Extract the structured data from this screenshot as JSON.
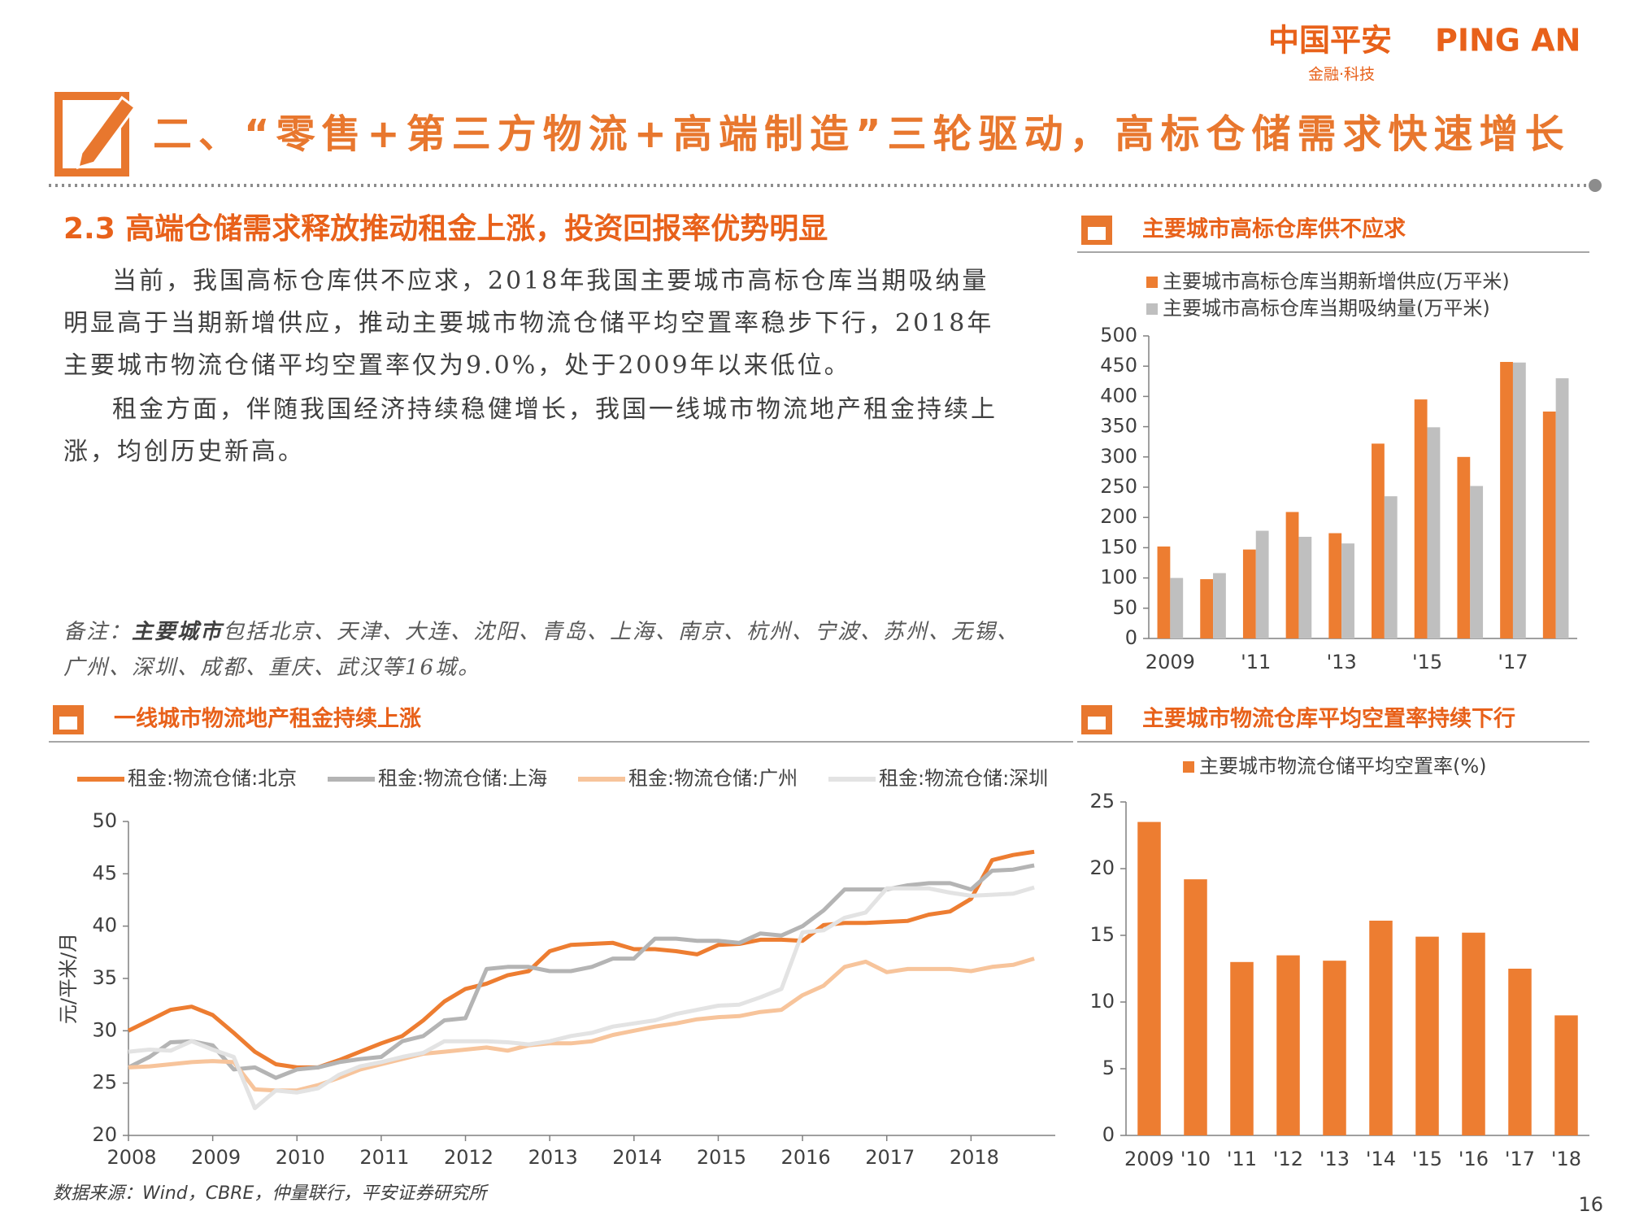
{
  "header": {
    "logo": "中国平安",
    "logo_latin": "PING AN",
    "logo_tagline": "金融·科技",
    "title": "二、“零售+第三方物流+高端制造”三轮驱动，高标仓储需求快速增长"
  },
  "section": {
    "title": "2.3 高端仓储需求释放推动租金上涨，投资回报率优势明显",
    "paragraphs": [
      "当前，我国高标仓库供不应求，2018年我国主要城市高标仓库当期吸纳量明显高于当期新增供应，推动主要城市物流仓储平均空置率稳步下行，2018年主要城市物流仓储平均空置率仅为9.0%，处于2009年以来低位。",
      "租金方面，伴随我国经济持续稳健增长，我国一线城市物流地产租金持续上涨，均创历史新高。"
    ],
    "note": {
      "label": "备注：",
      "emphasis": "主要城市",
      "text": "包括北京、天津、大连、沈阳、青岛、上海、南京、杭州、宁波、苏州、无锡、广州、深圳、成都、重庆、武汉等16城。"
    }
  },
  "footer": {
    "source": "数据来源：Wind，CBRE，仲量联行，平安证券研究所",
    "page": "16"
  },
  "chart_data": [
    {
      "type": "bar",
      "title": "主要城市高标仓库供不应求",
      "categories": [
        "2009",
        null,
        "'11",
        null,
        "'13",
        null,
        "'15",
        null,
        "'17",
        null
      ],
      "series": [
        {
          "name": "主要城市高标仓库当期新增供应(万平米)",
          "color": "#ED7D31",
          "values": [
            152,
            98,
            147,
            209,
            174,
            322,
            395,
            300,
            457,
            375
          ]
        },
        {
          "name": "主要城市高标仓库当期吸纳量(万平米)",
          "color": "#BFBFBF",
          "values": [
            100,
            108,
            178,
            168,
            157,
            235,
            349,
            252,
            456,
            430
          ]
        }
      ],
      "ylim": [
        0,
        500
      ],
      "yticks": [
        0,
        50,
        100,
        150,
        200,
        250,
        300,
        350,
        400,
        450,
        500
      ]
    },
    {
      "type": "line",
      "title": "一线城市物流地产租金持续上涨",
      "y_label": "元/平米/月",
      "x": [
        2008,
        2008.25,
        2008.5,
        2008.75,
        2009,
        2009.25,
        2009.5,
        2009.75,
        2010,
        2010.25,
        2010.5,
        2010.75,
        2011,
        2011.25,
        2011.5,
        2011.75,
        2012,
        2012.25,
        2012.5,
        2012.75,
        2013,
        2013.25,
        2013.5,
        2013.75,
        2014,
        2014.25,
        2014.5,
        2014.75,
        2015,
        2015.25,
        2015.5,
        2015.75,
        2016,
        2016.25,
        2016.5,
        2016.75,
        2017,
        2017.25,
        2017.5,
        2017.75,
        2018,
        2018.25,
        2018.5,
        2018.75
      ],
      "series": [
        {
          "name": "租金:物流仓储:北京",
          "color": "#ED7D31",
          "values": [
            30,
            31,
            32,
            32.3,
            31.5,
            29.8,
            28,
            26.8,
            26.5,
            26.5,
            27.2,
            28,
            28.8,
            29.5,
            31,
            32.8,
            34,
            34.5,
            35.3,
            35.7,
            37.6,
            38.2,
            38.3,
            38.4,
            37.8,
            37.8,
            37.6,
            37.3,
            38.2,
            38.3,
            38.7,
            38.7,
            38.6,
            40.1,
            40.3,
            40.3,
            40.4,
            40.5,
            41.1,
            41.4,
            42.6,
            46.3,
            46.8,
            47.1
          ]
        },
        {
          "name": "租金:物流仓储:上海",
          "color": "#B4B4B4",
          "values": [
            26.5,
            27.5,
            28.9,
            29,
            28.6,
            26.3,
            26.5,
            25.5,
            26.3,
            26.5,
            27,
            27.3,
            27.5,
            29,
            29.5,
            31,
            31.2,
            35.9,
            36.1,
            36.1,
            35.7,
            35.7,
            36.1,
            36.9,
            36.9,
            38.8,
            38.8,
            38.6,
            38.6,
            38.4,
            39.3,
            39.1,
            40,
            41.5,
            43.5,
            43.5,
            43.5,
            43.9,
            44.1,
            44.1,
            43.5,
            45.3,
            45.4,
            45.8
          ]
        },
        {
          "name": "租金:物流仓储:广州",
          "color": "#F7C49B",
          "values": [
            26.5,
            26.6,
            26.8,
            27,
            27.1,
            27,
            24.4,
            24.3,
            24.3,
            24.8,
            25.5,
            26.3,
            26.8,
            27.3,
            27.8,
            28,
            28.2,
            28.4,
            28.1,
            28.6,
            28.8,
            28.8,
            29,
            29.6,
            30,
            30.4,
            30.7,
            31.1,
            31.3,
            31.4,
            31.8,
            32,
            33.4,
            34.3,
            36.1,
            36.6,
            35.6,
            35.9,
            35.9,
            35.9,
            35.7,
            36.1,
            36.3,
            36.9
          ]
        },
        {
          "name": "租金:物流仓储:深圳",
          "color": "#E3E3E3",
          "values": [
            28,
            28.2,
            28.1,
            29,
            28.2,
            27.5,
            22.6,
            24.3,
            24.1,
            24.5,
            25.8,
            26.6,
            27,
            27.5,
            27.9,
            29,
            29,
            29,
            28.9,
            28.7,
            29,
            29.5,
            29.8,
            30.4,
            30.7,
            31,
            31.6,
            32,
            32.4,
            32.5,
            33.2,
            34,
            39.4,
            39.6,
            40.8,
            41.3,
            43.6,
            43.6,
            43.6,
            43.2,
            42.9,
            43,
            43.1,
            43.7
          ]
        }
      ],
      "xlim": [
        2008,
        2019
      ],
      "xticks": [
        2008,
        2009,
        2010,
        2011,
        2012,
        2013,
        2014,
        2015,
        2016,
        2017,
        2018
      ],
      "ylim": [
        20,
        50
      ],
      "yticks": [
        20,
        25,
        30,
        35,
        40,
        45,
        50
      ]
    },
    {
      "type": "bar",
      "title": "主要城市物流仓库平均空置率持续下行",
      "categories": [
        "2009",
        "'10",
        "'11",
        "'12",
        "'13",
        "'14",
        "'15",
        "'16",
        "'17",
        "'18"
      ],
      "series": [
        {
          "name": "主要城市物流仓储平均空置率(%)",
          "color": "#ED7D31",
          "values": [
            23.5,
            19.2,
            13.0,
            13.5,
            13.1,
            16.1,
            14.9,
            15.2,
            12.5,
            9.0
          ]
        }
      ],
      "ylim": [
        0,
        25
      ],
      "yticks": [
        0,
        5,
        10,
        15,
        20,
        25
      ]
    }
  ]
}
